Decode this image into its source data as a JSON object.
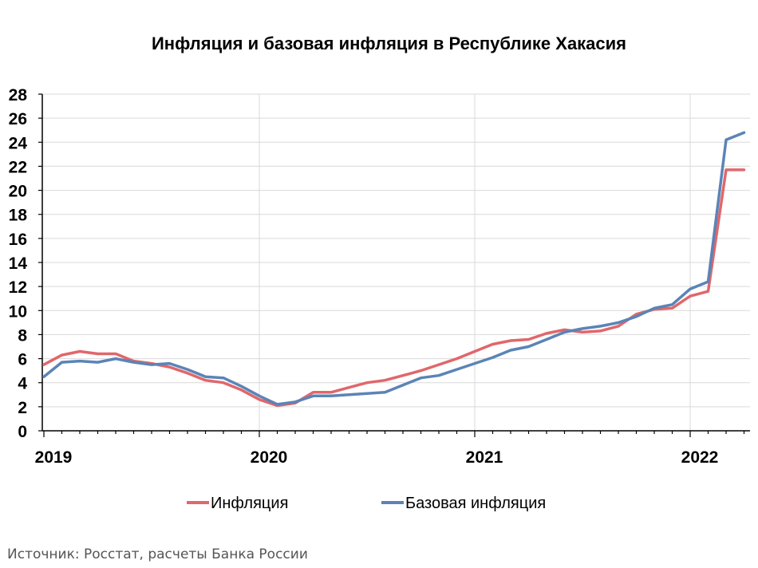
{
  "chart_data": {
    "type": "line",
    "title": "Инфляция и базовая инфляция в Республике Хакасия",
    "xlabel": "",
    "ylabel": "",
    "ylim": [
      0,
      28
    ],
    "y_ticks": [
      0,
      2,
      4,
      6,
      8,
      10,
      12,
      14,
      16,
      18,
      20,
      22,
      24,
      26,
      28
    ],
    "x_ticks": [
      "2019",
      "2020",
      "2021",
      "2022"
    ],
    "x": [
      "2019-01",
      "2019-02",
      "2019-03",
      "2019-04",
      "2019-05",
      "2019-06",
      "2019-07",
      "2019-08",
      "2019-09",
      "2019-10",
      "2019-11",
      "2019-12",
      "2020-01",
      "2020-02",
      "2020-03",
      "2020-04",
      "2020-05",
      "2020-06",
      "2020-07",
      "2020-08",
      "2020-09",
      "2020-10",
      "2020-11",
      "2020-12",
      "2021-01",
      "2021-02",
      "2021-03",
      "2021-04",
      "2021-05",
      "2021-06",
      "2021-07",
      "2021-08",
      "2021-09",
      "2021-10",
      "2021-11",
      "2021-12",
      "2022-01",
      "2022-02",
      "2022-03",
      "2022-04"
    ],
    "grid": true,
    "legend_position": "bottom",
    "series": [
      {
        "name": "Инфляция",
        "color": "#E0676B",
        "values": [
          5.5,
          6.3,
          6.6,
          6.4,
          6.4,
          5.8,
          5.6,
          5.3,
          4.8,
          4.2,
          4.0,
          3.4,
          2.6,
          2.1,
          2.3,
          3.2,
          3.2,
          3.6,
          4.0,
          4.2,
          4.6,
          5.0,
          5.5,
          6.0,
          6.6,
          7.2,
          7.5,
          7.6,
          8.1,
          8.4,
          8.2,
          8.3,
          8.7,
          9.7,
          10.1,
          10.2,
          11.2,
          11.6,
          21.7,
          21.7
        ]
      },
      {
        "name": "Базовая инфляция",
        "color": "#5B84B6",
        "values": [
          4.5,
          5.7,
          5.8,
          5.7,
          6.0,
          5.7,
          5.5,
          5.6,
          5.1,
          4.5,
          4.4,
          3.7,
          2.9,
          2.2,
          2.4,
          2.9,
          2.9,
          3.0,
          3.1,
          3.2,
          3.8,
          4.4,
          4.6,
          5.1,
          5.6,
          6.1,
          6.7,
          7.0,
          7.6,
          8.2,
          8.5,
          8.7,
          9.0,
          9.5,
          10.2,
          10.5,
          11.8,
          12.4,
          24.2,
          24.8
        ]
      }
    ]
  },
  "source_note": "Источник: Росстат, расчеты Банка России"
}
